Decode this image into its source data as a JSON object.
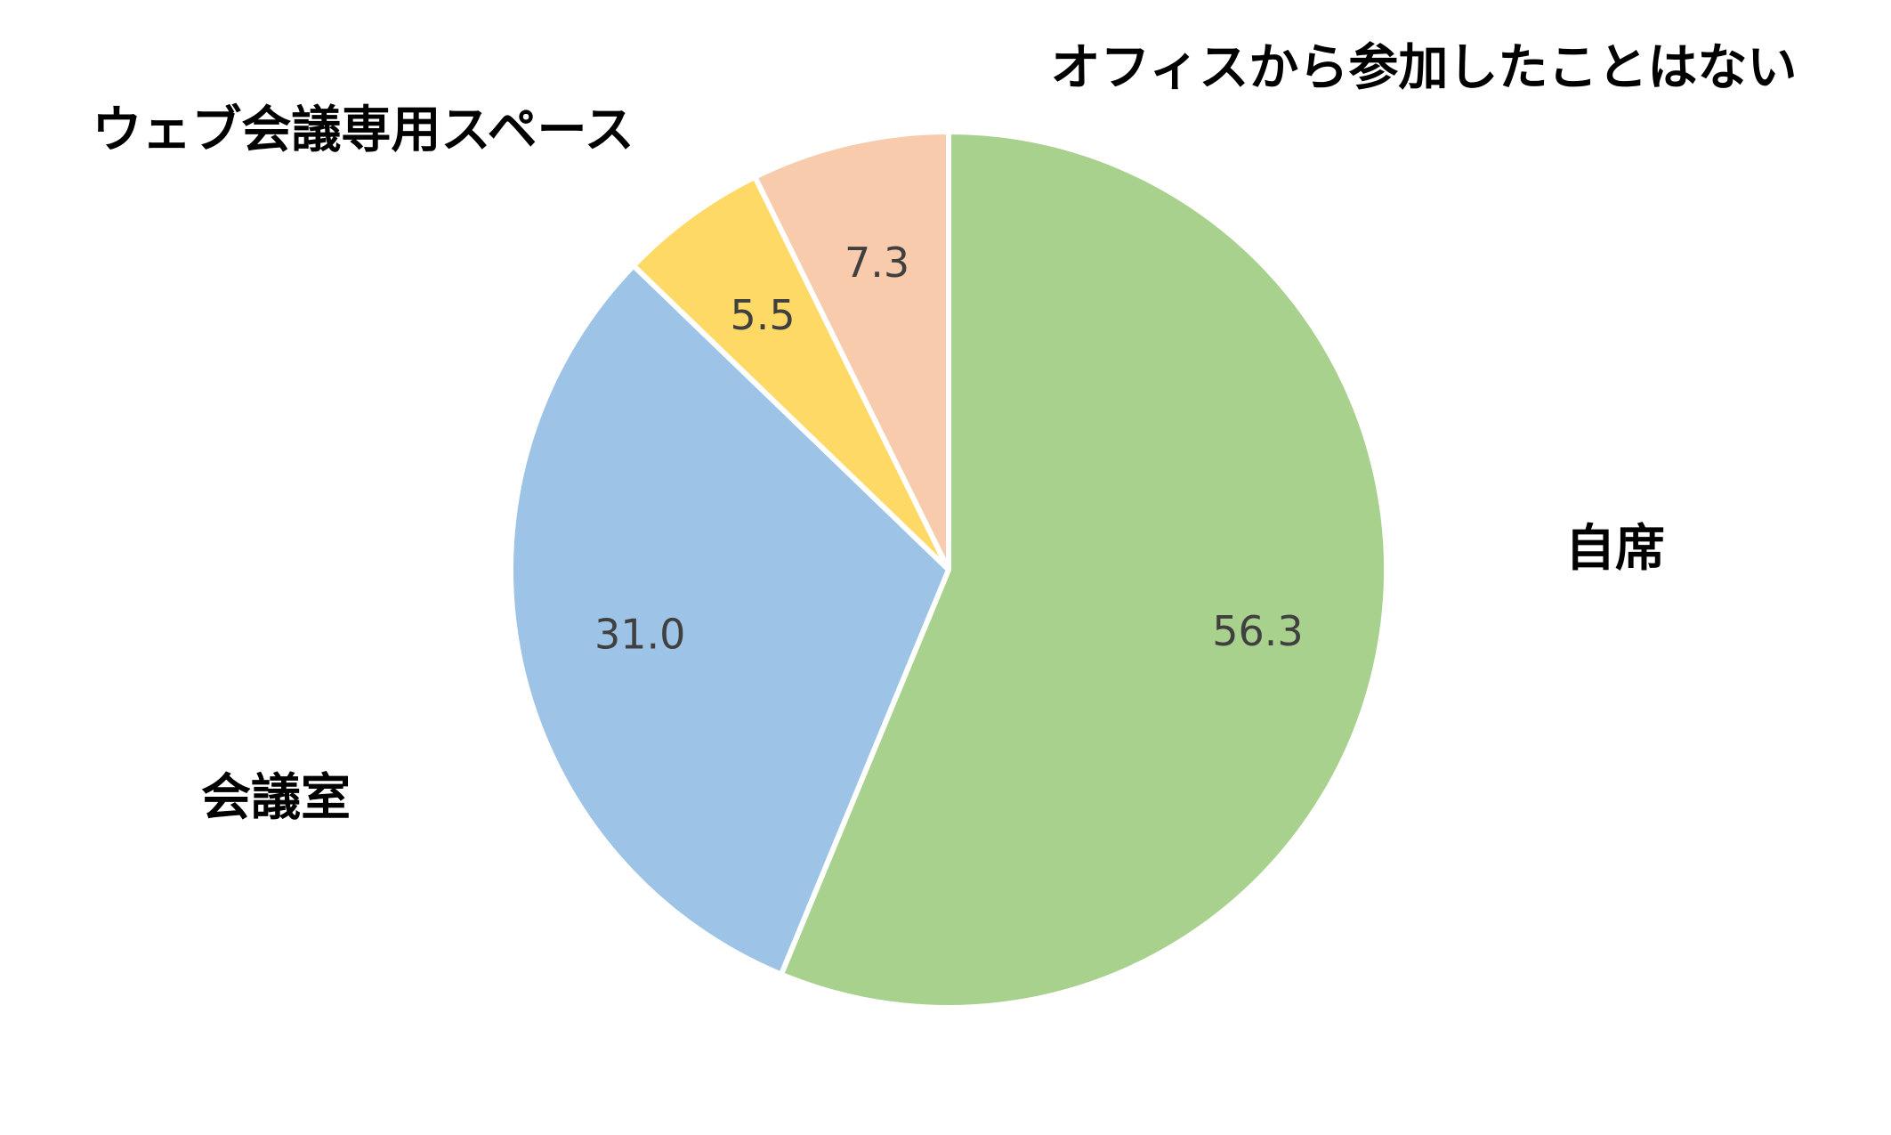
{
  "chart_data": {
    "type": "pie",
    "title": "",
    "start_angle_deg": 0,
    "direction": "clockwise",
    "slices": [
      {
        "label": "自席",
        "value": 56.3,
        "value_label": "56.3",
        "color": "#A9D18E"
      },
      {
        "label": "会議室",
        "value": 31.0,
        "value_label": "31.0",
        "color": "#9DC3E6"
      },
      {
        "label": "ウェブ会議専用スペース",
        "value": 5.5,
        "value_label": "5.5",
        "color": "#FFD966"
      },
      {
        "label": "オフィスから参加したことはない",
        "value": 7.3,
        "value_label": "7.3",
        "color": "#F8CBAD"
      }
    ],
    "slice_border_color": "#FFFFFF"
  }
}
